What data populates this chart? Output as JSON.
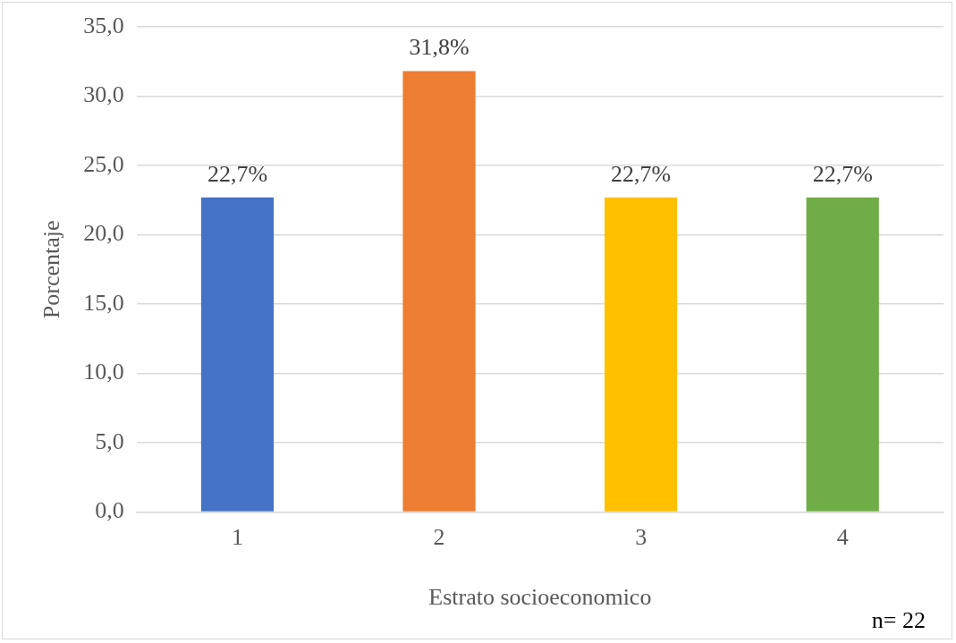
{
  "chart_data": {
    "type": "bar",
    "xlabel": "Estrato socioeconomico",
    "ylabel": "Porcentaje",
    "categories": [
      "1",
      "2",
      "3",
      "4"
    ],
    "values": [
      22.7,
      31.8,
      22.7,
      22.7
    ],
    "colors": [
      "#4472c4",
      "#ed7d31",
      "#ffc000",
      "#70ad47"
    ],
    "value_labels": [
      "22,7%",
      "31,8%",
      "22,7%",
      "22,7%"
    ],
    "ylim": [
      0,
      35
    ],
    "yticks": [
      {
        "value": 0,
        "label": "0,0"
      },
      {
        "value": 5,
        "label": "5,0"
      },
      {
        "value": 10,
        "label": "10,0"
      },
      {
        "value": 15,
        "label": "15,0"
      },
      {
        "value": 20,
        "label": "20,0"
      },
      {
        "value": 25,
        "label": "25,0"
      },
      {
        "value": 30,
        "label": "30,0"
      },
      {
        "value": 35,
        "label": "35,0"
      }
    ],
    "grid": "y",
    "legend": false,
    "annotations": [
      "n= 22"
    ]
  }
}
